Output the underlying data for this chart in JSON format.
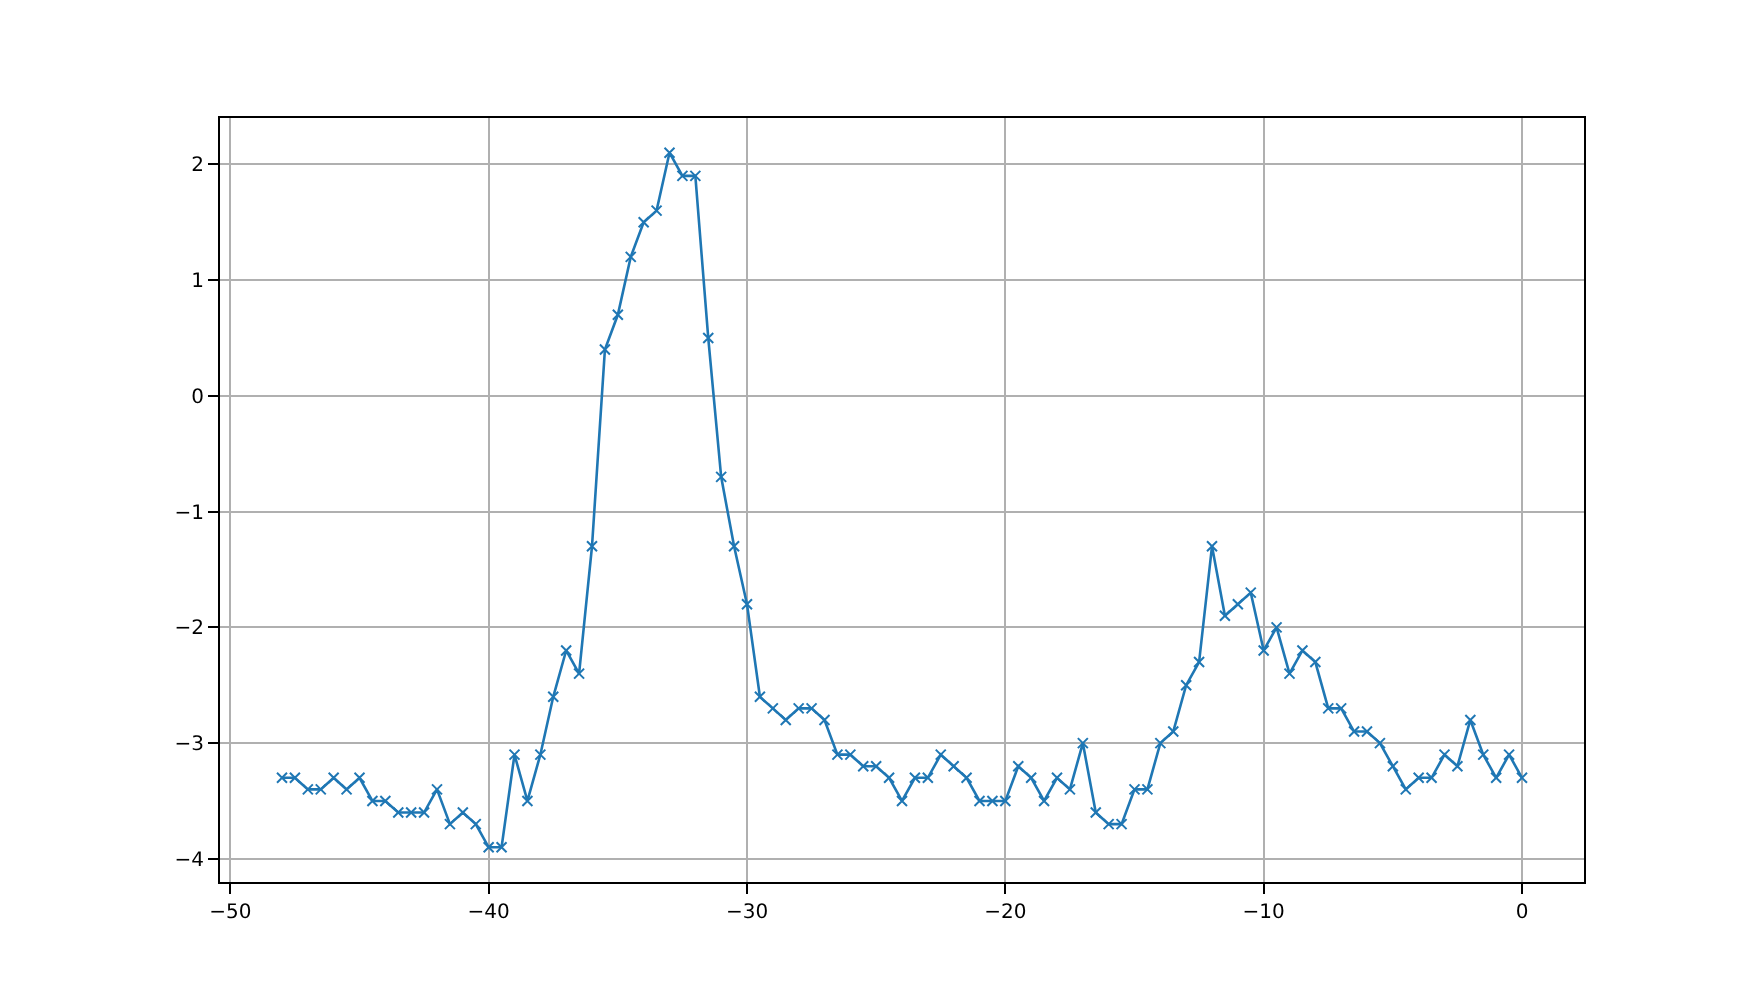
{
  "chart_data": {
    "type": "line",
    "x": [
      -48,
      -47.5,
      -47,
      -46.5,
      -46,
      -45.5,
      -45,
      -44.5,
      -44,
      -43.5,
      -43,
      -42.5,
      -42,
      -41.5,
      -41,
      -40.5,
      -40,
      -39.5,
      -39,
      -38.5,
      -38,
      -37.5,
      -37,
      -36.5,
      -36,
      -35.5,
      -35,
      -34.5,
      -34,
      -33.5,
      -33,
      -32.5,
      -32,
      -31.5,
      -31,
      -30.5,
      -30,
      -29.5,
      -29,
      -28.5,
      -28,
      -27.5,
      -27,
      -26.5,
      -26,
      -25.5,
      -25,
      -24.5,
      -24,
      -23.5,
      -23,
      -22.5,
      -22,
      -21.5,
      -21,
      -20.5,
      -20,
      -19.5,
      -19,
      -18.5,
      -18,
      -17.5,
      -17,
      -16.5,
      -16,
      -15.5,
      -15,
      -14.5,
      -14,
      -13.5,
      -13,
      -12.5,
      -12,
      -11.5,
      -11,
      -10.5,
      -10,
      -9.5,
      -9,
      -8.5,
      -8,
      -7.5,
      -7,
      -6.5,
      -6,
      -5.5,
      -5,
      -4.5,
      -4,
      -3.5,
      -3,
      -2.5,
      -2,
      -1.5,
      -1,
      -0.5,
      0
    ],
    "values": [
      -3.3,
      -3.3,
      -3.4,
      -3.4,
      -3.3,
      -3.4,
      -3.3,
      -3.5,
      -3.5,
      -3.6,
      -3.6,
      -3.6,
      -3.4,
      -3.7,
      -3.6,
      -3.7,
      -3.9,
      -3.9,
      -3.1,
      -3.5,
      -3.1,
      -2.6,
      -2.2,
      -2.4,
      -1.3,
      0.4,
      0.7,
      1.2,
      1.5,
      1.6,
      2.1,
      1.9,
      1.9,
      0.5,
      -0.7,
      -1.3,
      -1.8,
      -2.6,
      -2.7,
      -2.8,
      -2.7,
      -2.7,
      -2.8,
      -3.1,
      -3.1,
      -3.2,
      -3.2,
      -3.3,
      -3.5,
      -3.3,
      -3.3,
      -3.1,
      -3.2,
      -3.3,
      -3.5,
      -3.5,
      -3.5,
      -3.2,
      -3.3,
      -3.5,
      -3.3,
      -3.4,
      -3.0,
      -3.6,
      -3.7,
      -3.7,
      -3.4,
      -3.4,
      -3.0,
      -2.9,
      -2.5,
      -2.3,
      -1.3,
      -1.9,
      -1.8,
      -1.7,
      -2.2,
      -2.0,
      -2.4,
      -2.2,
      -2.3,
      -2.7,
      -2.7,
      -2.9,
      -2.9,
      -3.0,
      -3.2,
      -3.4,
      -3.3,
      -3.3,
      -3.1,
      -3.2,
      -2.8,
      -3.1,
      -3.3,
      -3.1,
      -3.3
    ],
    "color": "#1f77b4",
    "xlim": [
      -50.4,
      2.4
    ],
    "ylim": [
      -4.2,
      2.4
    ],
    "xticks": [
      -50,
      -40,
      -30,
      -20,
      -10,
      0
    ],
    "yticks": [
      -4,
      -3,
      -2,
      -1,
      0,
      1,
      2
    ],
    "grid": true,
    "marker": "cross",
    "line_style": "solid"
  }
}
